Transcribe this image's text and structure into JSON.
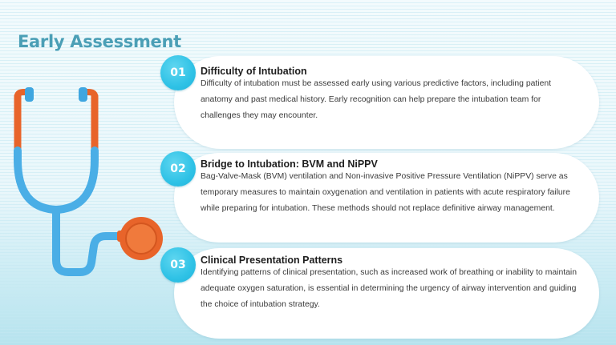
{
  "title": "Early Assessment",
  "items": [
    {
      "number": "01",
      "heading": "Difficulty of Intubation",
      "text": "Difficulty of intubation must be assessed early using various predictive factors, including patient anatomy and past medical history. Early recognition can help prepare the intubation team for challenges they may encounter."
    },
    {
      "number": "02",
      "heading": "Bridge to Intubation: BVM and NiPPV",
      "text": "Bag-Valve-Mask (BVM) ventilation and Non-invasive Positive Pressure Ventilation (NiPPV) serve as temporary measures to maintain oxygenation and ventilation in patients with acute respiratory failure while preparing for intubation. These methods should not replace definitive airway management."
    },
    {
      "number": "03",
      "heading": "Clinical Presentation Patterns",
      "text": "Identifying patterns of clinical presentation, such as increased work of breathing or inability to maintain adequate oxygen saturation, is essential in determining the urgency of airway intervention and guiding the choice of intubation strategy."
    }
  ],
  "illustration": "stethoscope-icon",
  "colors": {
    "title": "#4b9fb6",
    "number_badge": "#2fc2e6",
    "tube": "#4aaee6",
    "earpiece": "#e8642a",
    "chest_piece": "#e8642a"
  }
}
